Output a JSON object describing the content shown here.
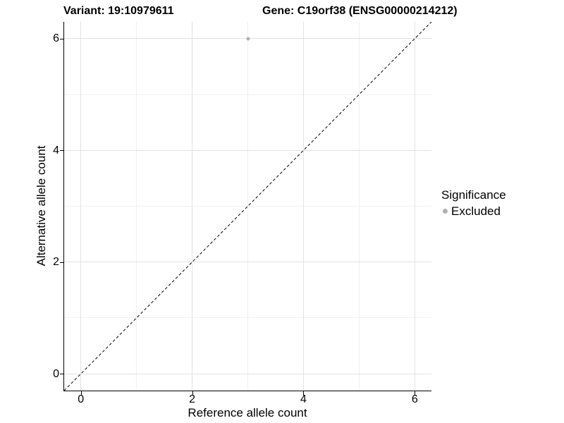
{
  "header": {
    "variant_title": "Variant: 19:10979611",
    "gene_title": "Gene: C19orf38 (ENSG00000214212)"
  },
  "chart_data": {
    "type": "scatter",
    "xlabel": "Reference allele count",
    "ylabel": "Alternative allele count",
    "xlim": [
      -0.3,
      6.3
    ],
    "ylim": [
      -0.3,
      6.3
    ],
    "x_ticks": [
      0,
      2,
      4,
      6
    ],
    "y_ticks": [
      0,
      2,
      4,
      6
    ],
    "x_minor_ticks": [
      1,
      3,
      5
    ],
    "y_minor_ticks": [
      1,
      3,
      5
    ],
    "grid": "major and minor gridlines on white background",
    "identity_line": {
      "style": "dashed",
      "slope": 1,
      "intercept": 0,
      "color": "#000000"
    },
    "series": [
      {
        "name": "Excluded",
        "color": "#b2b2b2",
        "points": [
          {
            "x": 3,
            "y": 6
          }
        ]
      }
    ],
    "legend": {
      "title": "Significance",
      "position": "right",
      "items": [
        {
          "label": "Excluded",
          "color": "#b2b2b2"
        }
      ]
    },
    "colors": {
      "background": "#ffffff",
      "axis_line": "#000000",
      "major_grid": "#e2e2e2",
      "minor_grid": "#f0f0f0",
      "text": "#000000"
    }
  }
}
